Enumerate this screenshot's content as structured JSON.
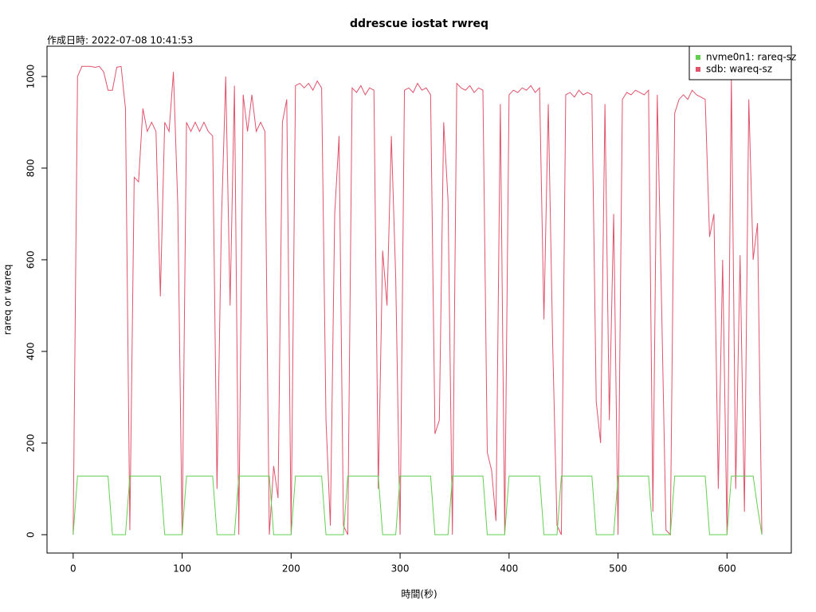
{
  "chart_data": {
    "type": "line",
    "title": "ddrescue iostat rwreq",
    "subtitle": "作成日時: 2022-07-08 10:41:53",
    "xlabel": "時間(秒)",
    "ylabel": "rareq or wareq",
    "xlim": [
      -24,
      659
    ],
    "ylim": [
      -40,
      1066
    ],
    "xticks": [
      0,
      100,
      200,
      300,
      400,
      500,
      600
    ],
    "yticks": [
      0,
      200,
      400,
      600,
      800,
      1000
    ],
    "legend": "top-right",
    "x": [
      0,
      4,
      8,
      12,
      16,
      20,
      24,
      28,
      32,
      36,
      40,
      44,
      48,
      52,
      56,
      60,
      64,
      68,
      72,
      76,
      80,
      84,
      88,
      92,
      96,
      100,
      104,
      108,
      112,
      116,
      120,
      124,
      128,
      132,
      136,
      140,
      144,
      148,
      152,
      156,
      160,
      164,
      168,
      172,
      176,
      180,
      184,
      188,
      192,
      196,
      200,
      204,
      208,
      212,
      216,
      220,
      224,
      228,
      232,
      236,
      240,
      244,
      248,
      252,
      256,
      260,
      264,
      268,
      272,
      276,
      280,
      284,
      288,
      292,
      296,
      300,
      304,
      308,
      312,
      316,
      320,
      324,
      328,
      332,
      336,
      340,
      344,
      348,
      352,
      356,
      360,
      364,
      368,
      372,
      376,
      380,
      384,
      388,
      392,
      396,
      400,
      404,
      408,
      412,
      416,
      420,
      424,
      428,
      432,
      436,
      440,
      444,
      448,
      452,
      456,
      460,
      464,
      468,
      472,
      476,
      480,
      484,
      488,
      492,
      496,
      500,
      504,
      508,
      512,
      516,
      520,
      524,
      528,
      532,
      536,
      540,
      544,
      548,
      552,
      556,
      560,
      564,
      568,
      572,
      576,
      580,
      584,
      588,
      592,
      596,
      600,
      604,
      608,
      612,
      616,
      620,
      624,
      628,
      632
    ],
    "series": [
      {
        "name": "nvme0n1: rareq-sz",
        "color": "#61D04F",
        "values": [
          0,
          128,
          128,
          128,
          128,
          128,
          128,
          128,
          128,
          0,
          0,
          0,
          0,
          128,
          128,
          128,
          128,
          128,
          128,
          128,
          128,
          0,
          0,
          0,
          0,
          0,
          128,
          128,
          128,
          128,
          128,
          128,
          128,
          0,
          0,
          0,
          0,
          0,
          128,
          128,
          128,
          128,
          128,
          128,
          128,
          128,
          0,
          0,
          0,
          0,
          0,
          128,
          128,
          128,
          128,
          128,
          128,
          128,
          0,
          0,
          0,
          0,
          0,
          128,
          128,
          128,
          128,
          128,
          128,
          128,
          128,
          0,
          0,
          0,
          0,
          128,
          128,
          128,
          128,
          128,
          128,
          128,
          128,
          0,
          0,
          0,
          0,
          128,
          128,
          128,
          128,
          128,
          128,
          128,
          128,
          0,
          0,
          0,
          0,
          0,
          128,
          128,
          128,
          128,
          128,
          128,
          128,
          128,
          0,
          0,
          0,
          0,
          128,
          128,
          128,
          128,
          128,
          128,
          128,
          128,
          0,
          0,
          0,
          0,
          0,
          128,
          128,
          128,
          128,
          128,
          128,
          128,
          128,
          0,
          0,
          0,
          0,
          0,
          128,
          128,
          128,
          128,
          128,
          128,
          128,
          128,
          0,
          0,
          0,
          0,
          0,
          128,
          128,
          128,
          128,
          128,
          128,
          60,
          0
        ]
      },
      {
        "name": "sdb: wareq-sz",
        "color": "#DF536B",
        "values": [
          0,
          1000,
          1022,
          1022,
          1022,
          1020,
          1022,
          1010,
          970,
          970,
          1020,
          1022,
          930,
          10,
          780,
          770,
          930,
          880,
          900,
          880,
          520,
          900,
          880,
          1010,
          720,
          0,
          900,
          880,
          900,
          880,
          900,
          880,
          870,
          100,
          680,
          1000,
          500,
          980,
          0,
          960,
          880,
          960,
          880,
          900,
          880,
          0,
          150,
          80,
          900,
          950,
          0,
          980,
          985,
          975,
          985,
          970,
          990,
          975,
          250,
          20,
          700,
          870,
          20,
          0,
          975,
          965,
          980,
          960,
          975,
          970,
          100,
          620,
          500,
          870,
          560,
          0,
          970,
          975,
          965,
          985,
          970,
          975,
          960,
          220,
          250,
          900,
          730,
          0,
          985,
          975,
          970,
          980,
          965,
          975,
          970,
          180,
          140,
          30,
          940,
          0,
          960,
          970,
          965,
          975,
          970,
          980,
          965,
          975,
          470,
          940,
          420,
          20,
          0,
          960,
          965,
          955,
          970,
          960,
          965,
          960,
          290,
          200,
          940,
          250,
          700,
          0,
          950,
          965,
          960,
          970,
          965,
          960,
          970,
          50,
          960,
          500,
          10,
          0,
          920,
          950,
          960,
          950,
          970,
          960,
          955,
          950,
          650,
          700,
          100,
          600,
          0,
          1000,
          100,
          610,
          50,
          950,
          600,
          680,
          0
        ]
      }
    ]
  }
}
